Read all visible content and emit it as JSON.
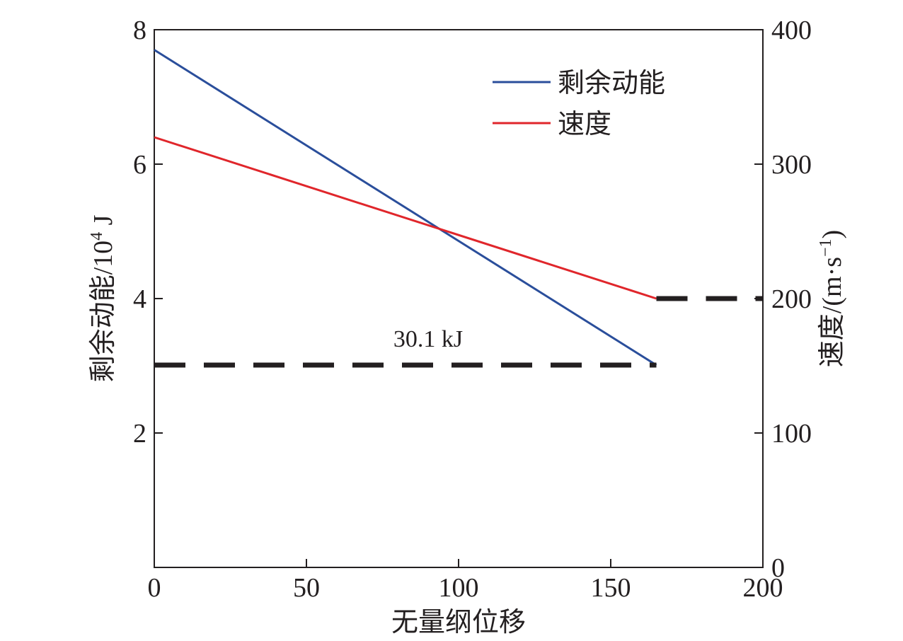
{
  "chart_data": {
    "type": "line",
    "x": [
      0,
      50,
      100,
      165
    ],
    "xlabel": "无量纲位移",
    "ylabel_left_main": "剩余动能/10",
    "ylabel_left_sup": "4",
    "ylabel_left_unit": " J",
    "ylabel_right_main": "速度/(m·s",
    "ylabel_right_sup": "−1",
    "ylabel_right_close": ")",
    "xlim": [
      0,
      200
    ],
    "ylim_left": [
      0,
      8
    ],
    "ylim_right": [
      0,
      400
    ],
    "x_ticks": [
      "0",
      "50",
      "100",
      "150",
      "200"
    ],
    "y_left_ticks": [
      "2",
      "4",
      "6",
      "8"
    ],
    "y_right_ticks": [
      "0",
      "100",
      "200",
      "300",
      "400"
    ],
    "series": [
      {
        "name": "剩余动能",
        "axis": "left",
        "color": "#2a4e9b",
        "x": [
          0,
          165
        ],
        "y": [
          7.7,
          3.01
        ]
      },
      {
        "name": "速度",
        "axis": "right",
        "color": "#e0262b",
        "x": [
          0,
          165
        ],
        "y": [
          320,
          200
        ]
      }
    ],
    "reference_lines": [
      {
        "axis": "left",
        "y": 3.01,
        "x": [
          0,
          165
        ],
        "style": "dashed",
        "color": "#231f20"
      },
      {
        "axis": "right",
        "y": 200,
        "x": [
          165,
          200
        ],
        "style": "dashed",
        "color": "#231f20"
      }
    ],
    "annotation": {
      "text": "30.1 kJ",
      "x": 90,
      "y": 3.2,
      "axis": "left"
    },
    "legend_position": "top-right",
    "grid": false
  }
}
